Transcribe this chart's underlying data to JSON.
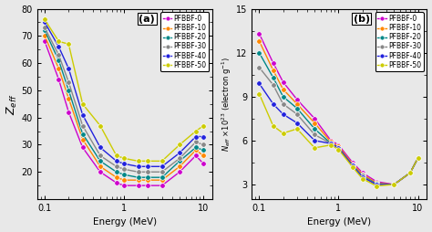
{
  "energy": [
    0.1,
    0.15,
    0.2,
    0.3,
    0.5,
    0.8,
    1.0,
    1.5,
    2.0,
    3.0,
    5.0,
    8.0,
    10.0
  ],
  "series_labels": [
    "PFBBF-0",
    "PFBBF-10",
    "PFBBF-20",
    "PFBBF-30",
    "PFBBF-40",
    "PFBBF-50"
  ],
  "colors": [
    "#cc00cc",
    "#ff8800",
    "#008888",
    "#888888",
    "#2222dd",
    "#cccc00"
  ],
  "zeff": [
    [
      68,
      54,
      42,
      29,
      20,
      16,
      15,
      15,
      15,
      15,
      20,
      26,
      23
    ],
    [
      70,
      58,
      47,
      32,
      22,
      18,
      17,
      17,
      17,
      17,
      22,
      28,
      26
    ],
    [
      72,
      61,
      50,
      34,
      24,
      20,
      19,
      18,
      18,
      18,
      24,
      29,
      28
    ],
    [
      73,
      63,
      53,
      37,
      26,
      22,
      21,
      20,
      20,
      20,
      25,
      31,
      30
    ],
    [
      75,
      66,
      58,
      41,
      29,
      24,
      23,
      22,
      22,
      22,
      27,
      33,
      33
    ],
    [
      76,
      68,
      67,
      45,
      37,
      26,
      25,
      24,
      24,
      24,
      30,
      35,
      37
    ]
  ],
  "neff": [
    [
      13.3,
      11.3,
      10.0,
      8.8,
      7.5,
      6.0,
      5.7,
      4.5,
      3.8,
      3.2,
      3.0,
      3.8,
      4.8
    ],
    [
      12.8,
      10.8,
      9.5,
      8.5,
      7.2,
      5.9,
      5.6,
      4.4,
      3.7,
      3.1,
      3.0,
      3.8,
      4.8
    ],
    [
      12.0,
      10.3,
      9.0,
      8.2,
      6.8,
      5.8,
      5.5,
      4.3,
      3.6,
      3.05,
      3.0,
      3.8,
      4.8
    ],
    [
      11.0,
      9.8,
      8.5,
      7.8,
      6.4,
      5.8,
      5.5,
      4.3,
      3.6,
      3.0,
      3.0,
      3.8,
      4.8
    ],
    [
      9.9,
      8.5,
      7.8,
      7.2,
      6.0,
      5.8,
      5.5,
      4.3,
      3.5,
      3.0,
      3.0,
      3.8,
      4.8
    ],
    [
      9.2,
      7.0,
      6.5,
      6.8,
      5.5,
      5.7,
      5.4,
      4.2,
      3.4,
      2.9,
      3.0,
      3.8,
      4.8
    ]
  ],
  "zeff_ylim": [
    10,
    80
  ],
  "zeff_yticks": [
    20,
    30,
    40,
    50,
    60,
    70,
    80
  ],
  "neff_ylim": [
    2,
    15
  ],
  "neff_yticks": [
    3,
    6,
    9,
    12,
    15
  ],
  "xlim": [
    0.08,
    13
  ],
  "xlabel": "Energy (MeV)",
  "ylabel_a": "$Z_{eff}$",
  "ylabel_b": "$N_{eff}$ ×10$^{23}$ (electron g$^{-1}$)",
  "label_a": "(a)",
  "label_b": "(b)",
  "bg_color": "#e8e8e8"
}
